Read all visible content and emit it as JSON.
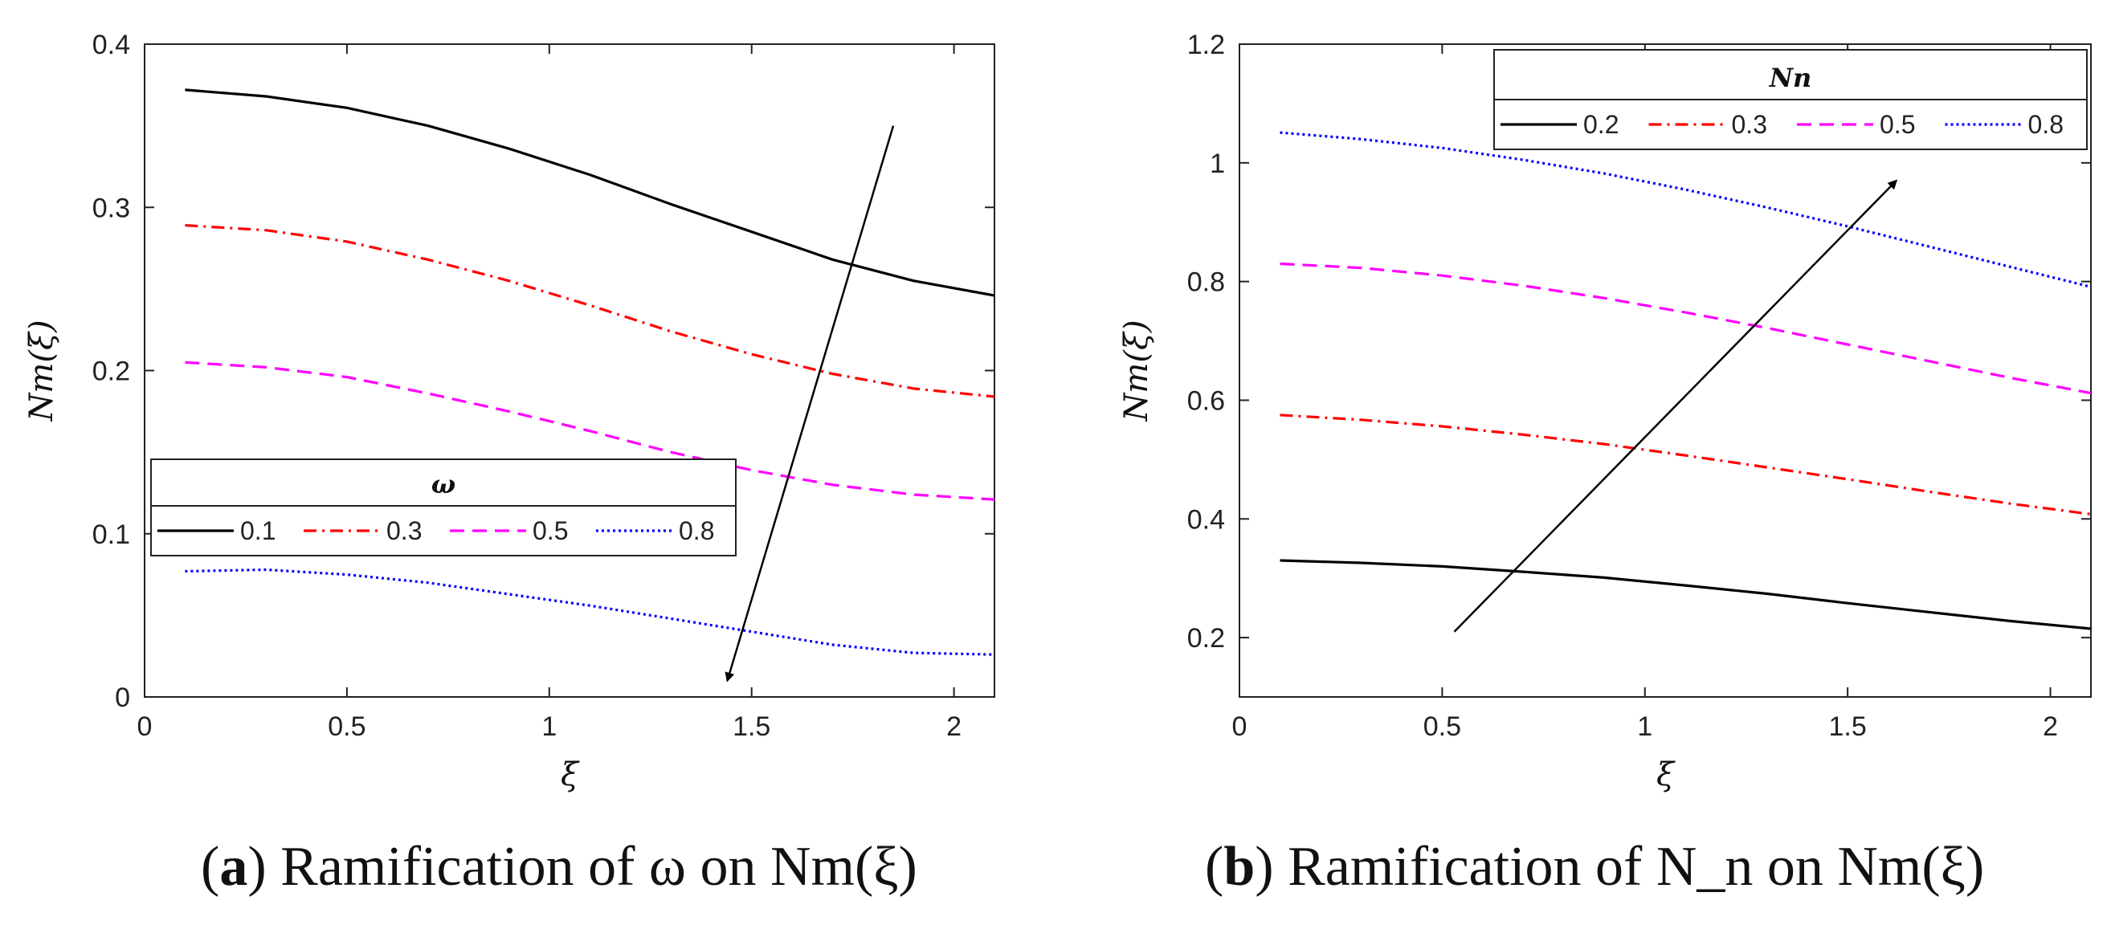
{
  "chart_data": [
    {
      "type": "line",
      "panel": "a",
      "xlabel": "ξ",
      "ylabel": "Nm(ξ)",
      "xlim": [
        0,
        2.1
      ],
      "ylim": [
        0,
        0.4
      ],
      "xticks": [
        0,
        0.5,
        1,
        1.5,
        2
      ],
      "xtick_labels": [
        "0",
        "0.5",
        "1",
        "1.5",
        "2"
      ],
      "yticks": [
        0,
        0.1,
        0.2,
        0.3,
        0.4
      ],
      "ytick_labels": [
        "0",
        "0.1",
        "0.2",
        "0.3",
        "0.4"
      ],
      "legend": {
        "title": "ω",
        "placement": "center-left"
      },
      "x": [
        0.1,
        0.3,
        0.5,
        0.7,
        0.9,
        1.1,
        1.3,
        1.5,
        1.7,
        1.9,
        2.1
      ],
      "series": [
        {
          "name": "0.1",
          "color": "#000000",
          "style": "solid",
          "values": [
            0.372,
            0.368,
            0.361,
            0.35,
            0.336,
            0.32,
            0.302,
            0.285,
            0.268,
            0.255,
            0.246
          ]
        },
        {
          "name": "0.3",
          "color": "#ff0000",
          "style": "dashdot",
          "values": [
            0.289,
            0.286,
            0.279,
            0.268,
            0.255,
            0.24,
            0.224,
            0.21,
            0.198,
            0.189,
            0.184
          ]
        },
        {
          "name": "0.5",
          "color": "#ff00ff",
          "style": "dashed",
          "values": [
            0.205,
            0.202,
            0.196,
            0.186,
            0.175,
            0.163,
            0.15,
            0.139,
            0.13,
            0.124,
            0.121
          ]
        },
        {
          "name": "0.8",
          "color": "#0000ff",
          "style": "dotted",
          "values": [
            0.077,
            0.078,
            0.075,
            0.07,
            0.063,
            0.056,
            0.048,
            0.04,
            0.032,
            0.027,
            0.026
          ]
        }
      ],
      "arrow": {
        "from": [
          1.85,
          0.35
        ],
        "to": [
          1.44,
          0.01
        ]
      }
    },
    {
      "type": "line",
      "panel": "b",
      "xlabel": "ξ",
      "ylabel": "Nm(ξ)",
      "xlim": [
        0,
        2.1
      ],
      "ylim": [
        0.1,
        1.2
      ],
      "xticks": [
        0,
        0.5,
        1,
        1.5,
        2
      ],
      "xtick_labels": [
        "0",
        "0.5",
        "1",
        "1.5",
        "2"
      ],
      "yticks": [
        0.2,
        0.4,
        0.6,
        0.8,
        1.0,
        1.2
      ],
      "ytick_labels": [
        "0.2",
        "0.4",
        "0.6",
        "0.8",
        "1",
        "1.2"
      ],
      "legend": {
        "title": "Nn",
        "placement": "top-right"
      },
      "x": [
        0.1,
        0.3,
        0.5,
        0.7,
        0.9,
        1.1,
        1.3,
        1.5,
        1.7,
        1.9,
        2.1
      ],
      "series": [
        {
          "name": "0.2",
          "color": "#000000",
          "style": "solid",
          "values": [
            0.33,
            0.326,
            0.32,
            0.311,
            0.301,
            0.288,
            0.274,
            0.258,
            0.243,
            0.228,
            0.215
          ]
        },
        {
          "name": "0.3",
          "color": "#ff0000",
          "style": "dashdot",
          "values": [
            0.575,
            0.567,
            0.556,
            0.542,
            0.526,
            0.507,
            0.487,
            0.467,
            0.446,
            0.426,
            0.408
          ]
        },
        {
          "name": "0.5",
          "color": "#ff00ff",
          "style": "dashed",
          "values": [
            0.83,
            0.823,
            0.81,
            0.793,
            0.772,
            0.748,
            0.722,
            0.694,
            0.666,
            0.638,
            0.612
          ]
        },
        {
          "name": "0.8",
          "color": "#0000ff",
          "style": "dotted",
          "values": [
            1.051,
            1.04,
            1.025,
            1.005,
            0.982,
            0.955,
            0.925,
            0.893,
            0.859,
            0.825,
            0.791
          ]
        }
      ],
      "arrow": {
        "from": [
          0.53,
          0.21
        ],
        "to": [
          1.62,
          0.97
        ]
      }
    }
  ],
  "captions": [
    {
      "label": "(a)",
      "text": "Ramification of ω on Nm(ξ)"
    },
    {
      "label": "(b)",
      "text": "Ramification of N_n on Nm(ξ)"
    }
  ]
}
